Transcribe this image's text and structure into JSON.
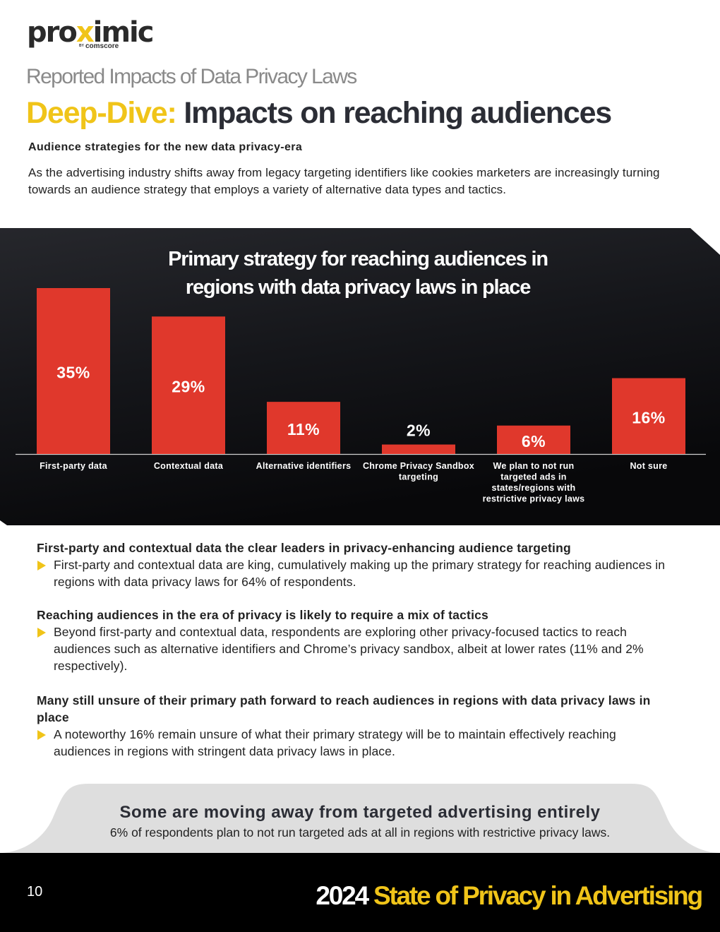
{
  "header": {
    "logo_text_a": "pro",
    "logo_text_b": "x",
    "logo_text_c": "imic",
    "logo_by": "BY",
    "logo_sub": "comscore",
    "kicker": "Reported Impacts of Data Privacy Laws",
    "headline_highlight": "Deep-Dive:",
    "headline_rest": " Impacts on reaching audiences"
  },
  "intro": {
    "heading": "Audience strategies for the new data privacy-era",
    "paragraph": "As the advertising industry shifts away from legacy targeting identifiers like cookies marketers are increasingly turning towards an audience strategy that employs a variety of alternative data types and tactics."
  },
  "chart_data": {
    "type": "bar",
    "title_line1": "Primary strategy for reaching audiences in",
    "title_line2": "regions with data privacy laws in place",
    "categories": [
      [
        "First-party data"
      ],
      [
        "Contextual data"
      ],
      [
        "Alternative identifiers"
      ],
      [
        "Chrome Privacy Sandbox",
        "targeting"
      ],
      [
        "We plan to not run",
        "targeted ads in",
        "states/regions with",
        "restrictive privacy laws"
      ],
      [
        "Not sure"
      ]
    ],
    "values": [
      35,
      29,
      11,
      2,
      6,
      16
    ],
    "value_labels": [
      "35%",
      "29%",
      "11%",
      "2%",
      "6%",
      "16%"
    ],
    "bar_color": "#e0382c",
    "background": "#111114",
    "grid": false,
    "legend": "none"
  },
  "sections": [
    {
      "heading": "First-party and contextual data the clear leaders in privacy-enhancing audience targeting",
      "bullet": "First-party and contextual data are king, cumulatively making up the primary strategy for reaching audiences in regions with data privacy laws for 64% of respondents."
    },
    {
      "heading": "Reaching audiences in the era of privacy is likely to require a mix of tactics",
      "bullet": "Beyond first-party and contextual data, respondents are exploring other privacy-focused tactics to reach audiences such as alternative identifiers and Chrome’s privacy sandbox, albeit at lower rates (11% and 2% respectively)."
    },
    {
      "heading": "Many still unsure of their primary path forward to reach audiences in regions with data privacy laws in place",
      "bullet": "A noteworthy 16% remain unsure of what their primary strategy will be to maintain effectively reaching audiences in regions with stringent data privacy laws in place."
    }
  ],
  "callout": {
    "heading": "Some are moving away from targeted advertising entirely",
    "text": "6% of respondents plan to not run targeted ads at all in regions with restrictive privacy laws."
  },
  "footer": {
    "page_number": "10",
    "title_year": "2024",
    "title_rest": " State of Privacy in Advertising"
  },
  "colors": {
    "accent": "#f0c419",
    "bar": "#e0382c",
    "dark": "#111114",
    "callout_bg": "#dedede"
  }
}
